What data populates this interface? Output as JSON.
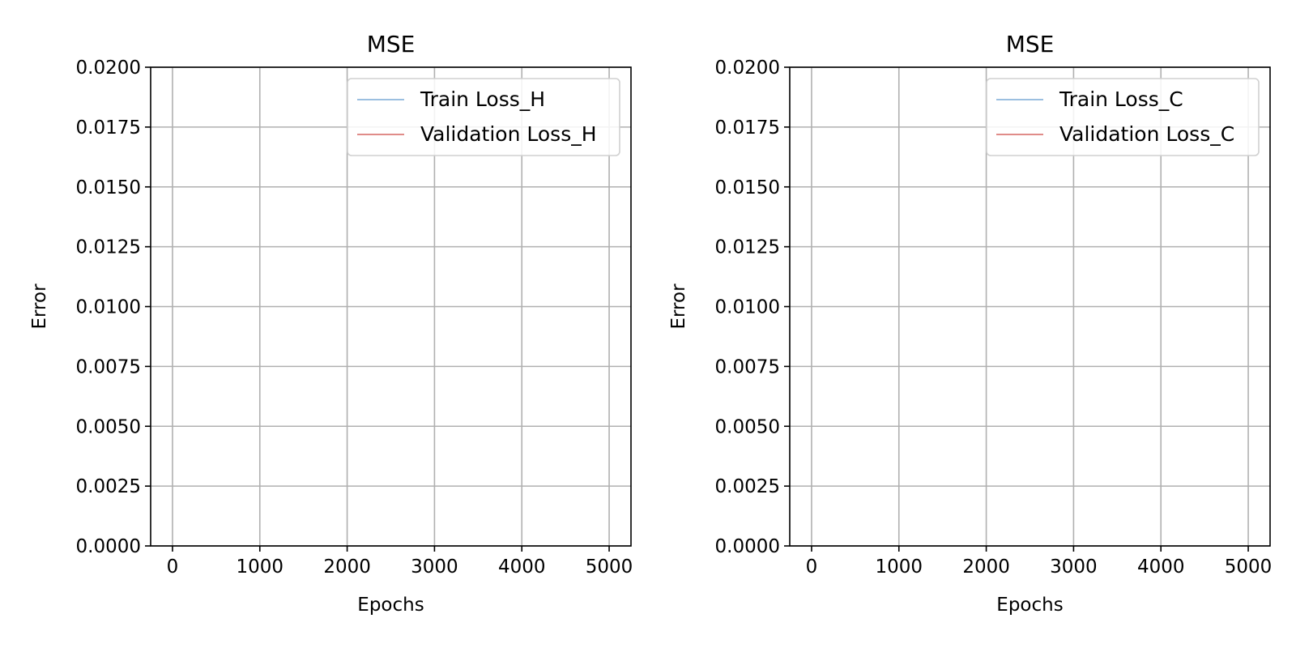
{
  "chart_data": [
    {
      "type": "line",
      "title": "MSE",
      "xlabel": "Epochs",
      "ylabel": "Error",
      "xlim": [
        -250,
        5250
      ],
      "ylim": [
        0.0,
        0.02
      ],
      "xticks": [
        0,
        1000,
        2000,
        3000,
        4000,
        5000
      ],
      "xtick_labels": [
        "0",
        "1000",
        "2000",
        "3000",
        "4000",
        "5000"
      ],
      "yticks": [
        0.0,
        0.0025,
        0.005,
        0.0075,
        0.01,
        0.0125,
        0.015,
        0.0175,
        0.02
      ],
      "ytick_labels": [
        "0.0000",
        "0.0025",
        "0.0050",
        "0.0075",
        "0.0100",
        "0.0125",
        "0.0150",
        "0.0175",
        "0.0200"
      ],
      "grid": true,
      "legend_position": "upper right",
      "series": [
        {
          "name": "Train Loss_H",
          "color": "#9bbfe0",
          "x": [],
          "y": []
        },
        {
          "name": "Validation Loss_H",
          "color": "#e08c89",
          "x": [],
          "y": []
        }
      ]
    },
    {
      "type": "line",
      "title": "MSE",
      "xlabel": "Epochs",
      "ylabel": "Error",
      "xlim": [
        -250,
        5250
      ],
      "ylim": [
        0.0,
        0.02
      ],
      "xticks": [
        0,
        1000,
        2000,
        3000,
        4000,
        5000
      ],
      "xtick_labels": [
        "0",
        "1000",
        "2000",
        "3000",
        "4000",
        "5000"
      ],
      "yticks": [
        0.0,
        0.0025,
        0.005,
        0.0075,
        0.01,
        0.0125,
        0.015,
        0.0175,
        0.02
      ],
      "ytick_labels": [
        "0.0000",
        "0.0025",
        "0.0050",
        "0.0075",
        "0.0100",
        "0.0125",
        "0.0150",
        "0.0175",
        "0.0200"
      ],
      "grid": true,
      "legend_position": "upper right",
      "series": [
        {
          "name": "Train Loss_C",
          "color": "#9bbfe0",
          "x": [],
          "y": []
        },
        {
          "name": "Validation Loss_C",
          "color": "#e08c89",
          "x": [],
          "y": []
        }
      ]
    }
  ]
}
